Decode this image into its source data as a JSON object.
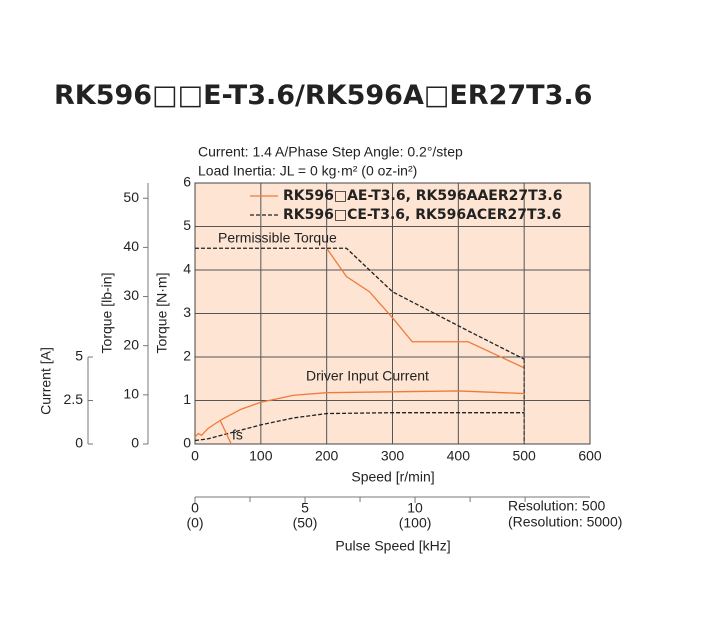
{
  "chart_data": {
    "type": "line",
    "title": "RK596□□E-T3.6/RK596A□ER27T3.6",
    "subtitle_lines": [
      "Current: 1.4 A/Phase   Step Angle: 0.2°/step",
      "Load Inertia: JL = 0 kg·m² (0 oz-in²)"
    ],
    "xlabel": "Speed [r/min]",
    "ylabel": "Torque [N·m]",
    "ylabel_lbin": "Torque [lb-in]",
    "ylabel_current": "Current [A]",
    "annotations": [
      "Permissible Torque",
      "Driver Input Current",
      "fs"
    ],
    "xlim": [
      0,
      600
    ],
    "xticks": [
      0,
      100,
      200,
      300,
      400,
      500,
      600
    ],
    "ylim": [
      0,
      6
    ],
    "yticks": [
      0,
      1,
      2,
      3,
      4,
      5,
      6
    ],
    "lbin_lim": [
      0,
      53.1
    ],
    "lbin_ticks": [
      0,
      10,
      20,
      30,
      40,
      50
    ],
    "current_lim": [
      0,
      5
    ],
    "current_ticks": [
      0,
      2.5,
      5
    ],
    "grid": true,
    "background": "#fde4d3",
    "series": [
      {
        "name": "RK596□AE-T3.6, RK596AAER27T3.6",
        "color": "#f07a3c",
        "dash": false,
        "x": [
          200,
          230,
          265,
          300,
          330,
          415,
          500
        ],
        "values": [
          4.5,
          3.85,
          3.5,
          2.9,
          2.35,
          2.35,
          1.75
        ]
      },
      {
        "name": "RK596□CE-T3.6, RK596ACER27T3.6",
        "color": "#222222",
        "dash": true,
        "x": [
          0,
          230,
          300,
          415,
          500
        ],
        "values": [
          4.5,
          4.5,
          3.5,
          2.6,
          1.95
        ]
      },
      {
        "color": "#f07a3c",
        "dash": false,
        "axis": "current",
        "x": [
          0,
          5,
          10,
          20,
          40,
          70,
          100,
          150,
          200,
          300,
          400,
          500
        ],
        "values": [
          0.4,
          0.6,
          0.5,
          0.9,
          1.4,
          2.0,
          2.4,
          2.8,
          2.95,
          3.0,
          3.05,
          2.9
        ]
      },
      {
        "color": "#222222",
        "dash": true,
        "axis": "current",
        "x": [
          0,
          20,
          50,
          100,
          150,
          200,
          300,
          400,
          500
        ],
        "values": [
          0.2,
          0.3,
          0.6,
          1.1,
          1.5,
          1.75,
          1.8,
          1.8,
          1.8
        ]
      },
      {
        "color": "#f07a3c",
        "dash": false,
        "x": [
          38,
          55
        ],
        "values": [
          0.55,
          0
        ]
      }
    ],
    "pulse_axis": {
      "label": "Pulse Speed [kHz]",
      "lim": [
        0,
        17.95
      ],
      "ticks": [
        0,
        5,
        10
      ],
      "tick_labels_2": [
        "(0)",
        "(50)",
        "(100)"
      ],
      "minor_ticks": [
        2.5,
        7.5,
        12.5,
        15
      ],
      "notes": [
        "Resolution: 500",
        "(Resolution: 5000)"
      ]
    }
  }
}
